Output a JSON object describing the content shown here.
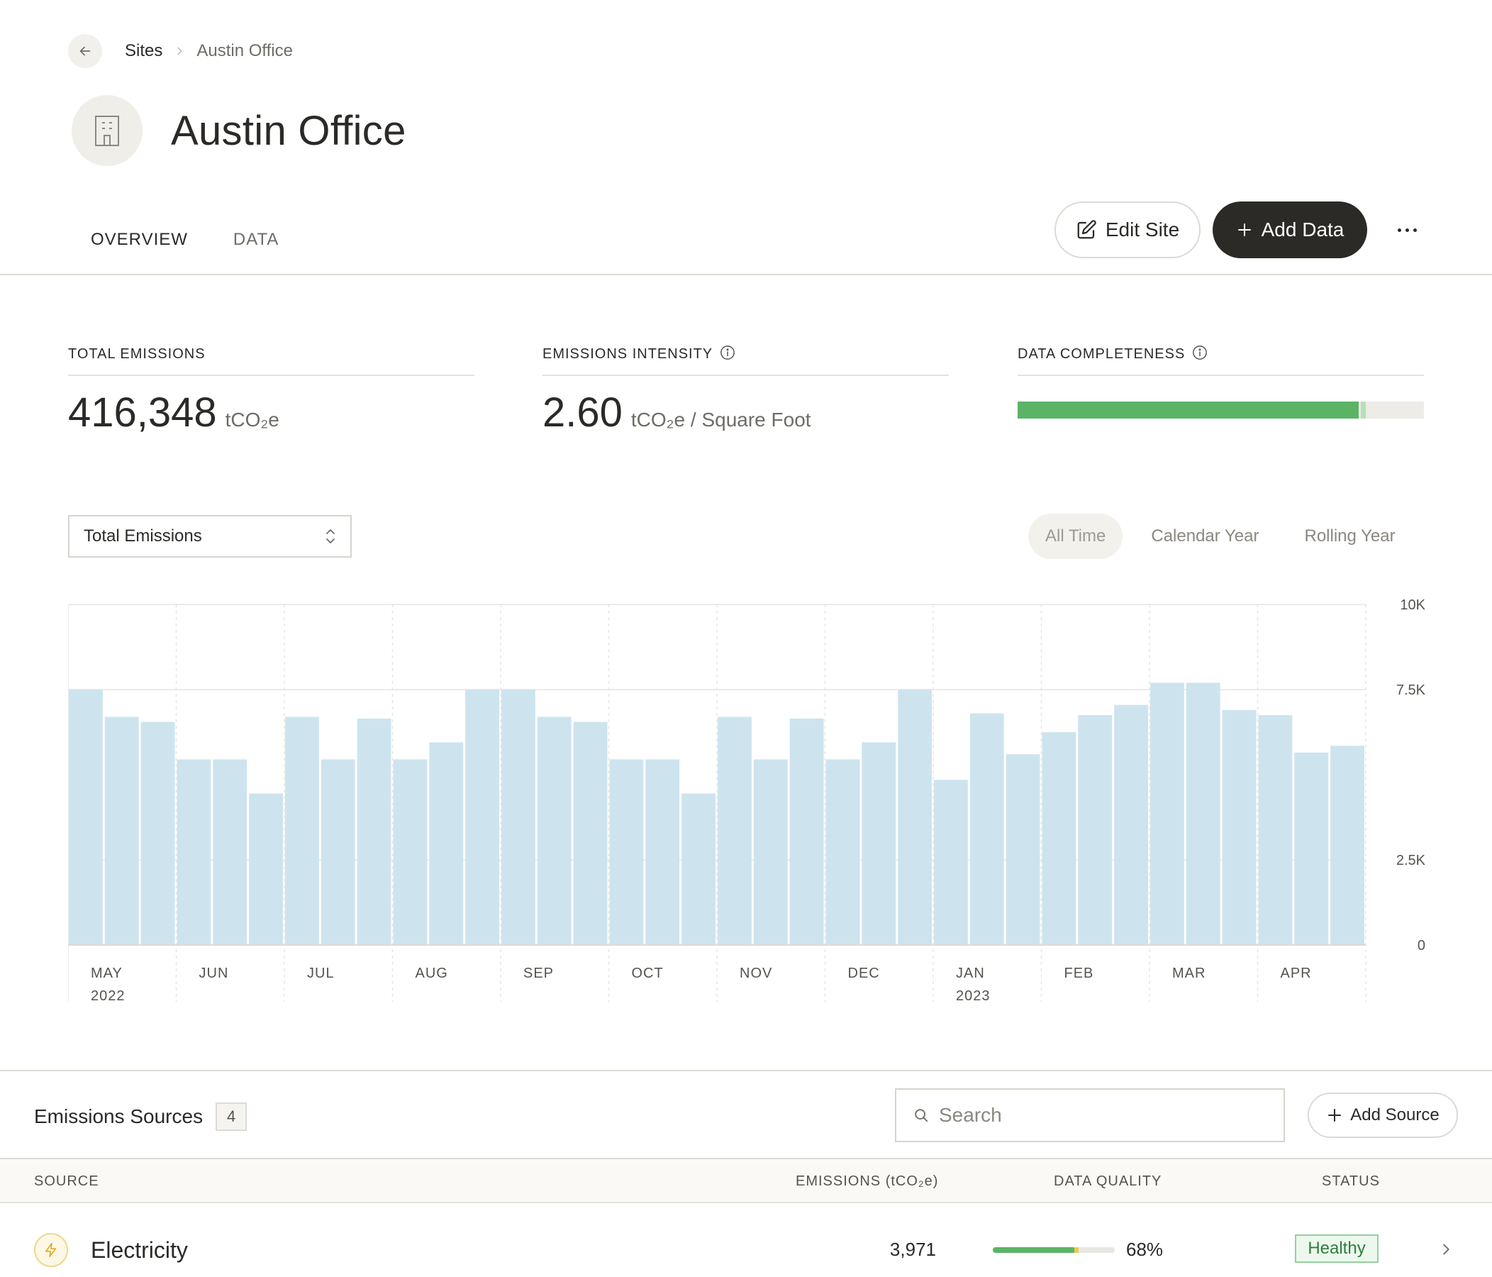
{
  "breadcrumb": {
    "parent": "Sites",
    "current": "Austin Office"
  },
  "page": {
    "title": "Austin Office"
  },
  "tabs": [
    {
      "label": "OVERVIEW",
      "active": true
    },
    {
      "label": "DATA",
      "active": false
    }
  ],
  "actions": {
    "edit_label": "Edit Site",
    "add_label": "Add Data"
  },
  "stats": {
    "total": {
      "label": "TOTAL EMISSIONS",
      "value": "416,348",
      "unit": "tCO₂e"
    },
    "intensity": {
      "label": "EMISSIONS INTENSITY",
      "value": "2.60",
      "unit": "tCO₂e / Square Foot"
    },
    "completeness": {
      "label": "DATA COMPLETENESS",
      "fraction": 0.84
    }
  },
  "chart_controls": {
    "metric": "Total Emissions",
    "ranges": [
      {
        "label": "All Time",
        "active": true
      },
      {
        "label": "Calendar Year",
        "active": false
      },
      {
        "label": "Rolling Year",
        "active": false
      }
    ]
  },
  "colors": {
    "bar": "#cde4ee",
    "accent_dark": "#2b2a27",
    "green": "#5bb466",
    "yellow": "#f2c94c"
  },
  "chart_data": {
    "type": "bar",
    "ylim": [
      0,
      10000
    ],
    "y_ticks": [
      "10K",
      "7.5K",
      "2.5K",
      "0"
    ],
    "x_tick_labels": [
      "MAY",
      "JUN",
      "JUL",
      "AUG",
      "SEP",
      "OCT",
      "NOV",
      "DEC",
      "JAN",
      "FEB",
      "MAR",
      "APR"
    ],
    "x_year_labels": {
      "MAY": "2022",
      "JAN": "2023"
    },
    "values": [
      7500,
      6700,
      6550,
      5450,
      5450,
      4450,
      6700,
      5450,
      6650,
      5450,
      5950,
      7500,
      7500,
      6700,
      6550,
      5450,
      5450,
      4450,
      6700,
      5450,
      6650,
      5450,
      5950,
      7500,
      4850,
      6800,
      5600,
      6250,
      6750,
      7050,
      7700,
      7700,
      6900,
      6750,
      5650,
      5850
    ]
  },
  "sources": {
    "title": "Emissions Sources",
    "count": "4",
    "search_placeholder": "Search",
    "add_label": "Add Source",
    "columns": {
      "source": "SOURCE",
      "emissions": "EMISSIONS (tCO₂e)",
      "quality": "DATA QUALITY",
      "status": "STATUS"
    },
    "rows": [
      {
        "name": "Electricity",
        "icon": "lightning-icon",
        "emissions": "3,971",
        "quality_pct": "68%",
        "quality_fraction": 0.68,
        "status": "Healthy"
      }
    ]
  }
}
